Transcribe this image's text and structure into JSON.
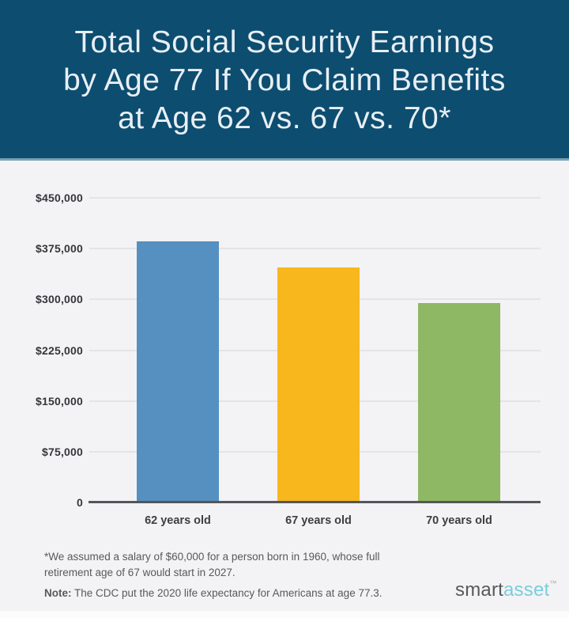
{
  "header": {
    "title_lines": [
      "Total Social Security Earnings",
      "by Age 77 If You Claim Benefits",
      "at Age 62 vs. 67 vs. 70*"
    ],
    "bg_color": "#0d4d70",
    "text_color": "#e8eff4"
  },
  "chart_data": {
    "type": "bar",
    "title": "Total Social Security Earnings by Age 77 If You Claim Benefits at Age 62 vs. 67 vs. 70*",
    "categories": [
      "62 years old",
      "67 years old",
      "70 years old"
    ],
    "values": [
      386000,
      347000,
      295000
    ],
    "bar_colors": [
      "#5690c0",
      "#f8b71d",
      "#8eb863"
    ],
    "xlabel": "",
    "ylabel": "",
    "ylim": [
      0,
      450000
    ],
    "yticks": [
      {
        "label": "$450,000",
        "value": 450000
      },
      {
        "label": "$375,000",
        "value": 375000
      },
      {
        "label": "$300,000",
        "value": 300000
      },
      {
        "label": "$225,000",
        "value": 225000
      },
      {
        "label": "$150,000",
        "value": 150000
      },
      {
        "label": "$75,000",
        "value": 75000
      },
      {
        "label": "0",
        "value": 0
      }
    ],
    "grid": "horizontal",
    "legend": "none",
    "background": "#f3f3f5"
  },
  "footer": {
    "footnote_lines": [
      "*We assumed a salary of $60,000 for a person born in 1960, whose full",
      "retirement age of 67 would start in 2027."
    ],
    "note_label": "Note:",
    "note_text": " The CDC put the 2020 life expectancy for Americans at age 77.3.",
    "logo": {
      "part1": "smart",
      "part2": "asset",
      "trademark": "™",
      "accent_color": "#7bcdda",
      "dark_color": "#57585a"
    }
  }
}
